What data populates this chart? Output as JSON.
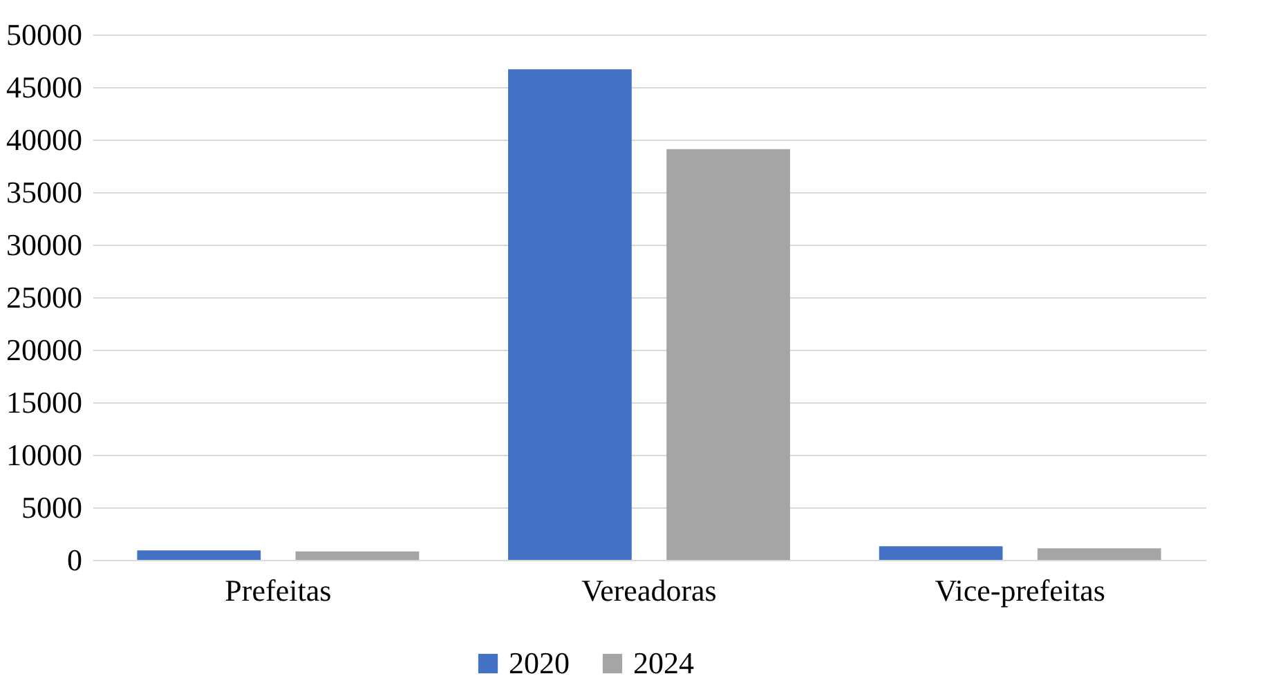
{
  "chart_data": {
    "type": "bar",
    "categories": [
      "Prefeitas",
      "Vereadoras",
      "Vice-prefeitas"
    ],
    "series": [
      {
        "name": "2020",
        "color": "#4472c4",
        "values": [
          900,
          46700,
          1300
        ]
      },
      {
        "name": "2024",
        "color": "#a5a5a5",
        "values": [
          800,
          39100,
          1100
        ]
      }
    ],
    "ylim": [
      0,
      50000
    ],
    "yticks": [
      0,
      5000,
      10000,
      15000,
      20000,
      25000,
      30000,
      35000,
      40000,
      45000,
      50000
    ],
    "grid": "y",
    "legend": "bottom"
  }
}
